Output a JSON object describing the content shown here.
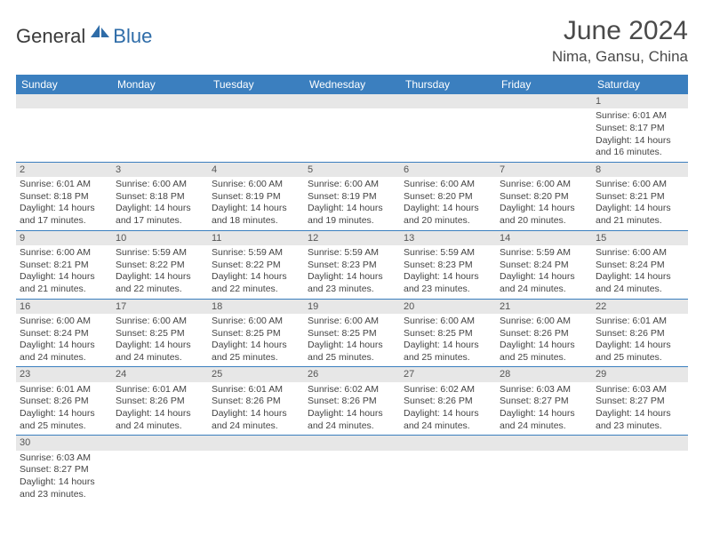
{
  "brand": {
    "main": "General",
    "sub": "Blue"
  },
  "title": "June 2024",
  "location": "Nima, Gansu, China",
  "colors": {
    "header_bg": "#3b7fbf",
    "header_text": "#ffffff",
    "daynum_bg": "#e7e7e7",
    "row_divider": "#3b7fbf",
    "body_text": "#444444",
    "title_text": "#4a4a4a",
    "logo_main": "#3a3a3a",
    "logo_sub": "#2e6ca8"
  },
  "weekdays": [
    "Sunday",
    "Monday",
    "Tuesday",
    "Wednesday",
    "Thursday",
    "Friday",
    "Saturday"
  ],
  "weeks": [
    [
      null,
      null,
      null,
      null,
      null,
      null,
      {
        "n": "1",
        "sr": "Sunrise: 6:01 AM",
        "ss": "Sunset: 8:17 PM",
        "dl": "Daylight: 14 hours and 16 minutes."
      }
    ],
    [
      {
        "n": "2",
        "sr": "Sunrise: 6:01 AM",
        "ss": "Sunset: 8:18 PM",
        "dl": "Daylight: 14 hours and 17 minutes."
      },
      {
        "n": "3",
        "sr": "Sunrise: 6:00 AM",
        "ss": "Sunset: 8:18 PM",
        "dl": "Daylight: 14 hours and 17 minutes."
      },
      {
        "n": "4",
        "sr": "Sunrise: 6:00 AM",
        "ss": "Sunset: 8:19 PM",
        "dl": "Daylight: 14 hours and 18 minutes."
      },
      {
        "n": "5",
        "sr": "Sunrise: 6:00 AM",
        "ss": "Sunset: 8:19 PM",
        "dl": "Daylight: 14 hours and 19 minutes."
      },
      {
        "n": "6",
        "sr": "Sunrise: 6:00 AM",
        "ss": "Sunset: 8:20 PM",
        "dl": "Daylight: 14 hours and 20 minutes."
      },
      {
        "n": "7",
        "sr": "Sunrise: 6:00 AM",
        "ss": "Sunset: 8:20 PM",
        "dl": "Daylight: 14 hours and 20 minutes."
      },
      {
        "n": "8",
        "sr": "Sunrise: 6:00 AM",
        "ss": "Sunset: 8:21 PM",
        "dl": "Daylight: 14 hours and 21 minutes."
      }
    ],
    [
      {
        "n": "9",
        "sr": "Sunrise: 6:00 AM",
        "ss": "Sunset: 8:21 PM",
        "dl": "Daylight: 14 hours and 21 minutes."
      },
      {
        "n": "10",
        "sr": "Sunrise: 5:59 AM",
        "ss": "Sunset: 8:22 PM",
        "dl": "Daylight: 14 hours and 22 minutes."
      },
      {
        "n": "11",
        "sr": "Sunrise: 5:59 AM",
        "ss": "Sunset: 8:22 PM",
        "dl": "Daylight: 14 hours and 22 minutes."
      },
      {
        "n": "12",
        "sr": "Sunrise: 5:59 AM",
        "ss": "Sunset: 8:23 PM",
        "dl": "Daylight: 14 hours and 23 minutes."
      },
      {
        "n": "13",
        "sr": "Sunrise: 5:59 AM",
        "ss": "Sunset: 8:23 PM",
        "dl": "Daylight: 14 hours and 23 minutes."
      },
      {
        "n": "14",
        "sr": "Sunrise: 5:59 AM",
        "ss": "Sunset: 8:24 PM",
        "dl": "Daylight: 14 hours and 24 minutes."
      },
      {
        "n": "15",
        "sr": "Sunrise: 6:00 AM",
        "ss": "Sunset: 8:24 PM",
        "dl": "Daylight: 14 hours and 24 minutes."
      }
    ],
    [
      {
        "n": "16",
        "sr": "Sunrise: 6:00 AM",
        "ss": "Sunset: 8:24 PM",
        "dl": "Daylight: 14 hours and 24 minutes."
      },
      {
        "n": "17",
        "sr": "Sunrise: 6:00 AM",
        "ss": "Sunset: 8:25 PM",
        "dl": "Daylight: 14 hours and 24 minutes."
      },
      {
        "n": "18",
        "sr": "Sunrise: 6:00 AM",
        "ss": "Sunset: 8:25 PM",
        "dl": "Daylight: 14 hours and 25 minutes."
      },
      {
        "n": "19",
        "sr": "Sunrise: 6:00 AM",
        "ss": "Sunset: 8:25 PM",
        "dl": "Daylight: 14 hours and 25 minutes."
      },
      {
        "n": "20",
        "sr": "Sunrise: 6:00 AM",
        "ss": "Sunset: 8:25 PM",
        "dl": "Daylight: 14 hours and 25 minutes."
      },
      {
        "n": "21",
        "sr": "Sunrise: 6:00 AM",
        "ss": "Sunset: 8:26 PM",
        "dl": "Daylight: 14 hours and 25 minutes."
      },
      {
        "n": "22",
        "sr": "Sunrise: 6:01 AM",
        "ss": "Sunset: 8:26 PM",
        "dl": "Daylight: 14 hours and 25 minutes."
      }
    ],
    [
      {
        "n": "23",
        "sr": "Sunrise: 6:01 AM",
        "ss": "Sunset: 8:26 PM",
        "dl": "Daylight: 14 hours and 25 minutes."
      },
      {
        "n": "24",
        "sr": "Sunrise: 6:01 AM",
        "ss": "Sunset: 8:26 PM",
        "dl": "Daylight: 14 hours and 24 minutes."
      },
      {
        "n": "25",
        "sr": "Sunrise: 6:01 AM",
        "ss": "Sunset: 8:26 PM",
        "dl": "Daylight: 14 hours and 24 minutes."
      },
      {
        "n": "26",
        "sr": "Sunrise: 6:02 AM",
        "ss": "Sunset: 8:26 PM",
        "dl": "Daylight: 14 hours and 24 minutes."
      },
      {
        "n": "27",
        "sr": "Sunrise: 6:02 AM",
        "ss": "Sunset: 8:26 PM",
        "dl": "Daylight: 14 hours and 24 minutes."
      },
      {
        "n": "28",
        "sr": "Sunrise: 6:03 AM",
        "ss": "Sunset: 8:27 PM",
        "dl": "Daylight: 14 hours and 24 minutes."
      },
      {
        "n": "29",
        "sr": "Sunrise: 6:03 AM",
        "ss": "Sunset: 8:27 PM",
        "dl": "Daylight: 14 hours and 23 minutes."
      }
    ],
    [
      {
        "n": "30",
        "sr": "Sunrise: 6:03 AM",
        "ss": "Sunset: 8:27 PM",
        "dl": "Daylight: 14 hours and 23 minutes."
      },
      null,
      null,
      null,
      null,
      null,
      null
    ]
  ]
}
